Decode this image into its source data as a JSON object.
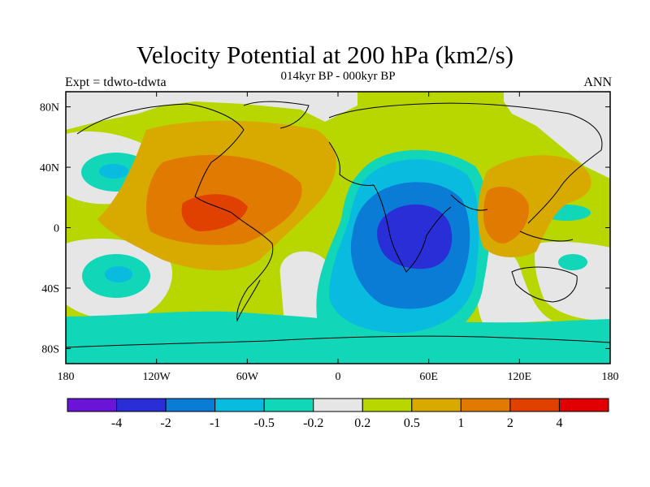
{
  "header": {
    "title": "Velocity Potential at 200 hPa (km2/s)",
    "subtitle": "014kyr BP - 000kyr BP",
    "left_label": "Expt = tdwto-tdwta",
    "right_label": "ANN"
  },
  "axes": {
    "x_ticks": [
      "180",
      "120W",
      "60W",
      "0",
      "60E",
      "120E",
      "180"
    ],
    "y_ticks": [
      "80N",
      "40N",
      "0",
      "40S",
      "80S"
    ]
  },
  "colorbar": {
    "colors": [
      "#6a14d8",
      "#2a2ed6",
      "#0a7cd6",
      "#0abbe0",
      "#12d6b8",
      "#e6e6e6",
      "#b8d600",
      "#d8aa00",
      "#e07a00",
      "#e04000",
      "#e00000"
    ],
    "labels": [
      "-4",
      "-2",
      "-1",
      "-0.5",
      "-0.2",
      "0.2",
      "0.5",
      "1",
      "2",
      "4"
    ]
  },
  "map": {
    "projection": "cylindrical equidistant",
    "lon_range": [
      -180,
      180
    ],
    "lat_range": [
      -90,
      90
    ],
    "field": "velocity potential difference",
    "notable_features": [
      {
        "type": "negative center",
        "lon": 45,
        "lat": 0,
        "level": "-4 to -2"
      },
      {
        "type": "positive center",
        "lon": -90,
        "lat": 5,
        "level": "2 to 4"
      },
      {
        "type": "positive center",
        "lon": 110,
        "lat": 10,
        "level": "1 to 2"
      }
    ]
  }
}
